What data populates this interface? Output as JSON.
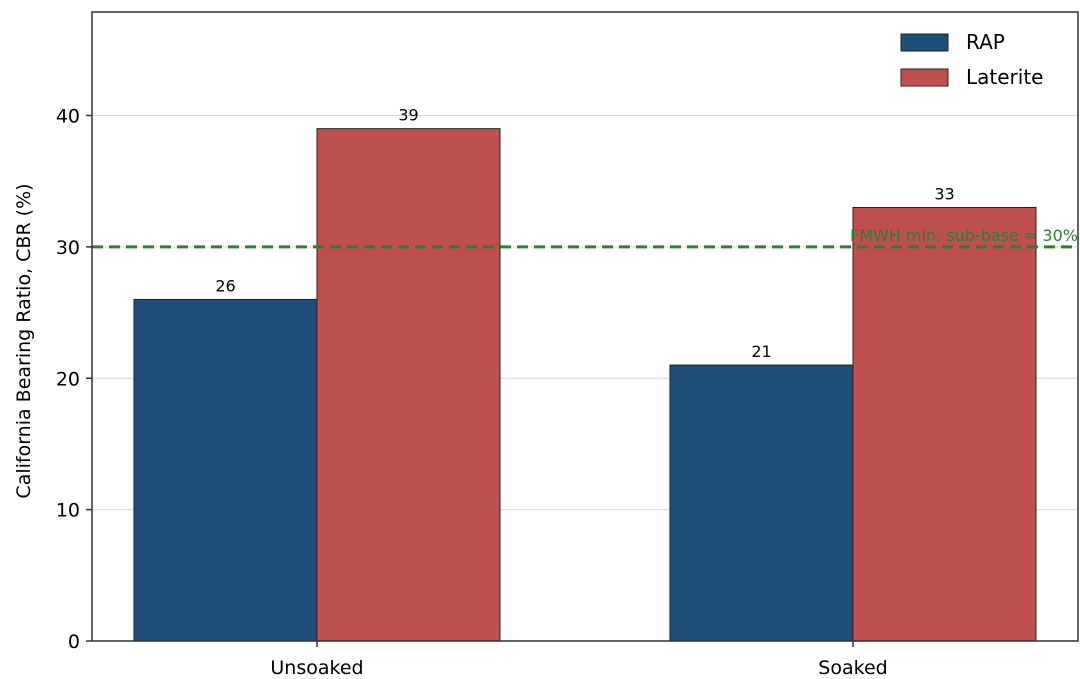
{
  "chart_data": {
    "type": "bar",
    "categories": [
      "Unsoaked",
      "Soaked"
    ],
    "series": [
      {
        "name": "RAP",
        "values": [
          26,
          21
        ],
        "color": "#1f4e79"
      },
      {
        "name": "Laterite",
        "values": [
          39,
          33
        ],
        "color": "#c0504d"
      }
    ],
    "ylabel": "California Bearing Ratio, CBR (%)",
    "xlabel": "",
    "ylim": [
      0,
      40
    ],
    "yticks": [
      0,
      10,
      20,
      30,
      40
    ],
    "grid": "horizontal",
    "legend_position": "top-right",
    "reference_line": {
      "value": 30,
      "label": "FMWH min. sub-base = 30%",
      "color": "#2e7d32",
      "style": "dashed"
    }
  }
}
